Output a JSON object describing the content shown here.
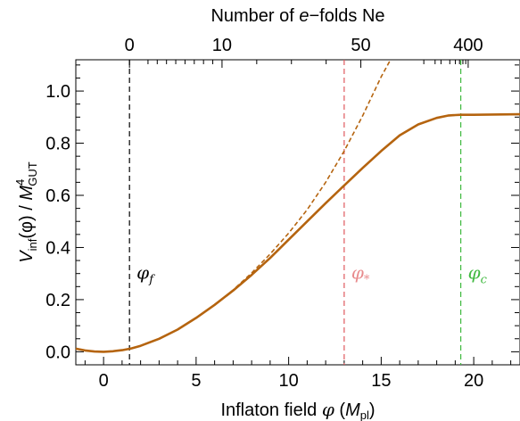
{
  "chart_data": {
    "type": "line",
    "xlabel_main": "Inflaton field ",
    "xlabel_symbol": "φ",
    "xlabel_unit_open": " (",
    "xlabel_unit": "M",
    "xlabel_unit_sub": "pl",
    "xlabel_unit_close": ")",
    "x2label_prefix": "Number of ",
    "x2label_italic": "e",
    "x2label_suffix": "−folds Ne",
    "ylabel_V": "V",
    "ylabel_V_sub": "inf",
    "ylabel_arg": "(φ) / ",
    "ylabel_M": "M",
    "ylabel_M_sub": "GUT",
    "ylabel_M_sup": "4",
    "xlim": [
      -1.5,
      22.5
    ],
    "ylim": [
      -0.05,
      1.12
    ],
    "x_ticks": [
      0,
      5,
      10,
      15,
      20
    ],
    "y_ticks": [
      0.0,
      0.2,
      0.4,
      0.6,
      0.8,
      1.0
    ],
    "top_ticks": [
      {
        "label": "0",
        "phi": 1.4
      },
      {
        "label": "10",
        "phi": 6.4
      },
      {
        "label": "50",
        "phi": 13.9
      },
      {
        "label": "400",
        "phi": 19.7
      }
    ],
    "series": [
      {
        "style": "solid",
        "color": "#b5640f",
        "x": [
          -1.5,
          -1.0,
          -0.5,
          0.0,
          0.5,
          1.0,
          1.5,
          2.0,
          3.0,
          4.0,
          5.0,
          6.0,
          7.0,
          8.0,
          9.0,
          10.0,
          11.0,
          12.0,
          13.0,
          14.0,
          15.0,
          16.0,
          17.0,
          18.0,
          18.6,
          19.0,
          19.3,
          20.0,
          21.0,
          22.5
        ],
        "y": [
          0.012,
          0.005,
          0.001,
          0.0,
          0.002,
          0.006,
          0.013,
          0.023,
          0.05,
          0.085,
          0.13,
          0.18,
          0.235,
          0.295,
          0.36,
          0.43,
          0.5,
          0.57,
          0.638,
          0.705,
          0.77,
          0.83,
          0.872,
          0.897,
          0.906,
          0.908,
          0.909,
          0.909,
          0.91,
          0.911
        ]
      },
      {
        "style": "dashed",
        "color": "#b5640f",
        "x": [
          5.0,
          6.0,
          7.0,
          8.0,
          9.0,
          10.0,
          11.0,
          12.0,
          13.0,
          14.0,
          15.0,
          15.5
        ],
        "y": [
          0.13,
          0.18,
          0.237,
          0.302,
          0.375,
          0.455,
          0.545,
          0.65,
          0.77,
          0.905,
          1.055,
          1.14
        ]
      }
    ],
    "vlines": [
      {
        "x": 1.4,
        "label": "φ",
        "label_sub": "f",
        "color": "#000000"
      },
      {
        "x": 13.0,
        "label": "φ",
        "label_sub": "*",
        "color": "#e0595e"
      },
      {
        "x": 19.3,
        "label": "φ",
        "label_sub": "c",
        "color": "#3fb93f"
      }
    ]
  }
}
